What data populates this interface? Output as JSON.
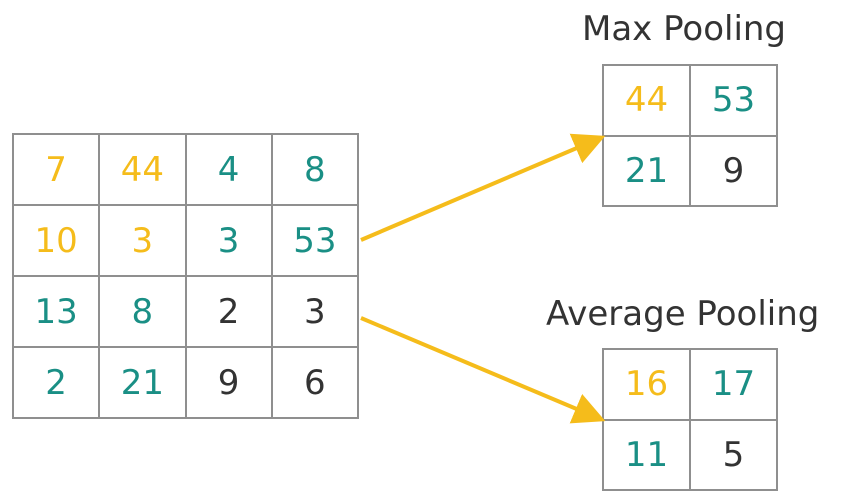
{
  "input_matrix": {
    "cells": [
      [
        {
          "v": "7",
          "c": "yellow"
        },
        {
          "v": "44",
          "c": "yellow"
        },
        {
          "v": "4",
          "c": "teal"
        },
        {
          "v": "8",
          "c": "teal"
        }
      ],
      [
        {
          "v": "10",
          "c": "yellow"
        },
        {
          "v": "3",
          "c": "yellow"
        },
        {
          "v": "3",
          "c": "teal"
        },
        {
          "v": "53",
          "c": "teal"
        }
      ],
      [
        {
          "v": "13",
          "c": "teal"
        },
        {
          "v": "8",
          "c": "teal"
        },
        {
          "v": "2",
          "c": "dark"
        },
        {
          "v": "3",
          "c": "dark"
        }
      ],
      [
        {
          "v": "2",
          "c": "teal"
        },
        {
          "v": "21",
          "c": "teal"
        },
        {
          "v": "9",
          "c": "dark"
        },
        {
          "v": "6",
          "c": "dark"
        }
      ]
    ]
  },
  "max_pooling": {
    "title": "Max Pooling",
    "cells": [
      [
        {
          "v": "44",
          "c": "yellow"
        },
        {
          "v": "53",
          "c": "teal"
        }
      ],
      [
        {
          "v": "21",
          "c": "teal"
        },
        {
          "v": "9",
          "c": "dark"
        }
      ]
    ]
  },
  "average_pooling": {
    "title": "Average Pooling",
    "cells": [
      [
        {
          "v": "16",
          "c": "yellow"
        },
        {
          "v": "17",
          "c": "teal"
        }
      ],
      [
        {
          "v": "11",
          "c": "teal"
        },
        {
          "v": "5",
          "c": "dark"
        }
      ]
    ]
  },
  "colors": {
    "yellow": "#f5bc1b",
    "teal": "#1a8f85",
    "dark": "#333333",
    "grid_line": "#8f8f8f",
    "arrow": "#f5bc1b"
  }
}
